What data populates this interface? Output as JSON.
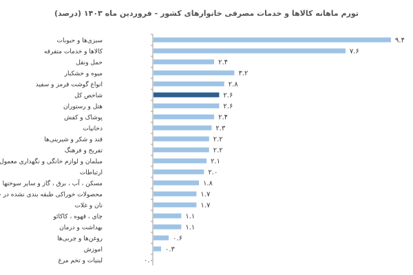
{
  "chart_data": {
    "type": "bar",
    "orientation": "horizontal",
    "title": "تورم ماهانه کالاها و خدمات مصرفی خانوارهای کشور - فروردین ماه ۱۴۰۳ (درصد)",
    "xlim": [
      0,
      9.4
    ],
    "grid": false,
    "colors": {
      "bar": "#9dc3e6",
      "highlight": "#2e5f8f",
      "axis": "#999999",
      "text": "#333333"
    },
    "highlight_index": 5,
    "categories": [
      "سبزی‌ها و حبوبات",
      "کالاها و خدمات متفرقه",
      "حمل ونقل",
      "میوه و خشکبار",
      "انواع گوشت قرمز و سفید",
      "شاخص کل",
      "هتل و رستوران",
      "پوشاک و کفش",
      "دخانیات",
      "قند و شکر و شیرینی‌ها",
      "تفریح و فرهنگ",
      "مبلمان و لوازم خانگی و نگهداری معمول آنها",
      "ارتباطات",
      "مسکن ، آب ، برق ، گاز و سایر سوختها",
      "محصولات خوراکی طبقه بندی نشده در جای دیگر",
      "نان و غلات",
      "چای ، قهوه ، کاکائو",
      "بهداشت و درمان",
      "روغن‌ها و چربی‌ها",
      "اموزش",
      "لبنیات و تخم مرغ"
    ],
    "values": [
      9.4,
      7.6,
      2.4,
      3.2,
      2.8,
      2.6,
      2.6,
      2.4,
      2.3,
      2.2,
      2.2,
      2.1,
      2.0,
      1.8,
      1.7,
      1.7,
      1.1,
      1.1,
      0.6,
      0.3,
      0.0
    ],
    "value_labels": [
      "۹.۴",
      "۷.۶",
      "۲.۴",
      "۳.۲",
      "۲.۸",
      "۲.۶",
      "۲.۶",
      "۲.۴",
      "۲.۳",
      "۲.۲",
      "۲.۲",
      "۲.۱",
      "۲.۰",
      "۱.۸",
      "۱.۷",
      "۱.۷",
      "۱.۱",
      "۱.۱",
      "۰.۶",
      "۰.۳",
      "۰.۰"
    ]
  }
}
